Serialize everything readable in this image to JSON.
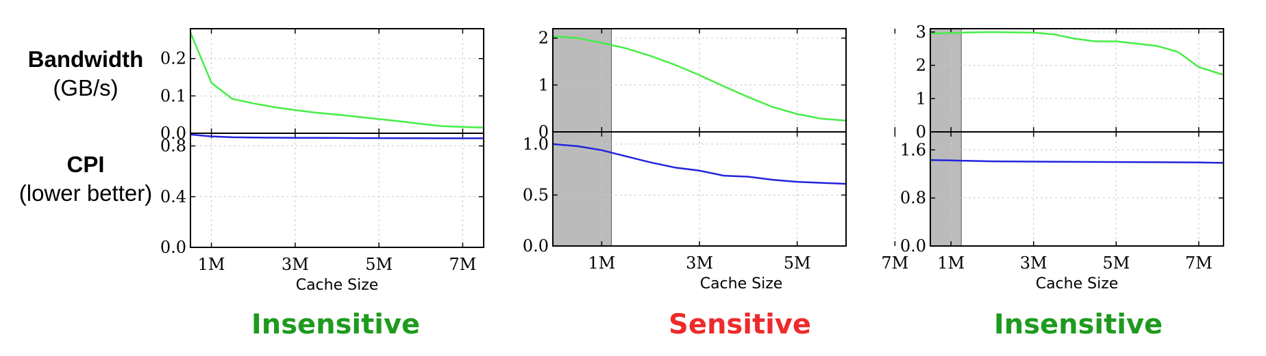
{
  "row_labels": {
    "top": {
      "title": "Bandwidth",
      "sub": "(GB/s)"
    },
    "bottom": {
      "title": "CPI",
      "sub": "(lower better)"
    }
  },
  "colors": {
    "bandwidth": "#44ee44",
    "cpi": "#2222dd",
    "shade": "#bbbbbb",
    "insensitive": "#1e9a1e",
    "sensitive": "#ee2a2a"
  },
  "chart_data": [
    {
      "type": "line",
      "xlabel": "Cache Size",
      "verdict": "Insensitive",
      "verdict_color": "#1e9a1e",
      "x_ticks": [
        {
          "label": "1M",
          "value": 1
        },
        {
          "label": "3M",
          "value": 3
        },
        {
          "label": "5M",
          "value": 5
        },
        {
          "label": "7M",
          "value": 7
        }
      ],
      "xlim": [
        0.5,
        7.5
      ],
      "shaded_x": null,
      "grid": true,
      "top": {
        "name": "Bandwidth",
        "ylim": [
          0,
          0.28
        ],
        "y_ticks": [
          {
            "label": "0.0",
            "value": 0
          },
          {
            "label": "0.1",
            "value": 0.1
          },
          {
            "label": "0.2",
            "value": 0.2
          }
        ],
        "x": [
          0.5,
          1.0,
          1.5,
          2.0,
          2.5,
          3.0,
          3.5,
          4.0,
          4.5,
          5.0,
          5.5,
          6.0,
          6.5,
          7.0,
          7.5
        ],
        "y": [
          0.27,
          0.135,
          0.092,
          0.08,
          0.07,
          0.062,
          0.055,
          0.05,
          0.044,
          0.038,
          0.032,
          0.025,
          0.019,
          0.017,
          0.015
        ]
      },
      "bottom": {
        "name": "CPI",
        "ylim": [
          0,
          0.9
        ],
        "y_ticks": [
          {
            "label": "0.0",
            "value": 0
          },
          {
            "label": "0.4",
            "value": 0.4
          },
          {
            "label": "0.8",
            "value": 0.8
          }
        ],
        "x": [
          0.5,
          1.0,
          1.5,
          2.0,
          2.5,
          3.0,
          3.5,
          4.0,
          4.5,
          5.0,
          5.5,
          6.0,
          6.5,
          7.0,
          7.5
        ],
        "y": [
          0.89,
          0.875,
          0.868,
          0.866,
          0.865,
          0.864,
          0.864,
          0.863,
          0.862,
          0.862,
          0.861,
          0.861,
          0.86,
          0.86,
          0.86
        ]
      }
    },
    {
      "type": "line",
      "xlabel": "Cache Size",
      "verdict": "Sensitive",
      "verdict_color": "#ee2a2a",
      "x_ticks": [
        {
          "label": "1M",
          "value": 1
        },
        {
          "label": "3M",
          "value": 3
        },
        {
          "label": "5M",
          "value": 5
        },
        {
          "label": "7M",
          "value": 7
        }
      ],
      "xlim": [
        0,
        6
      ],
      "shaded_x": [
        0,
        1.2
      ],
      "grid": true,
      "top": {
        "name": "Bandwidth",
        "ylim": [
          0,
          2.2
        ],
        "y_ticks": [
          {
            "label": "0",
            "value": 0
          },
          {
            "label": "1",
            "value": 1
          },
          {
            "label": "2",
            "value": 2
          }
        ],
        "x": [
          0.0,
          0.5,
          1.0,
          1.5,
          2.0,
          2.5,
          3.0,
          3.5,
          4.0,
          4.5,
          5.0,
          5.5,
          6.0
        ],
        "y": [
          2.04,
          2.0,
          1.9,
          1.78,
          1.62,
          1.43,
          1.21,
          0.97,
          0.74,
          0.53,
          0.38,
          0.28,
          0.24
        ]
      },
      "bottom": {
        "name": "CPI",
        "ylim": [
          0,
          1.12
        ],
        "y_ticks": [
          {
            "label": "0.0",
            "value": 0
          },
          {
            "label": "0.5",
            "value": 0.5
          },
          {
            "label": "1.0",
            "value": 1.0
          }
        ],
        "x": [
          0.0,
          0.5,
          1.0,
          1.5,
          2.0,
          2.5,
          3.0,
          3.5,
          4.0,
          4.5,
          5.0,
          5.5,
          6.0
        ],
        "y": [
          1.0,
          0.98,
          0.94,
          0.88,
          0.82,
          0.77,
          0.74,
          0.69,
          0.68,
          0.65,
          0.63,
          0.62,
          0.61
        ]
      }
    },
    {
      "type": "line",
      "xlabel": "Cache Size",
      "verdict": "Insensitive",
      "verdict_color": "#1e9a1e",
      "x_ticks": [
        {
          "label": "1M",
          "value": 1
        },
        {
          "label": "3M",
          "value": 3
        },
        {
          "label": "5M",
          "value": 5
        },
        {
          "label": "7M",
          "value": 7
        }
      ],
      "xlim": [
        0.5,
        7.6
      ],
      "shaded_x": [
        0.5,
        1.25
      ],
      "grid": true,
      "top": {
        "name": "Bandwidth",
        "ylim": [
          0,
          3.1
        ],
        "y_ticks": [
          {
            "label": "0",
            "value": 0
          },
          {
            "label": "1",
            "value": 1
          },
          {
            "label": "2",
            "value": 2
          },
          {
            "label": "3",
            "value": 3
          }
        ],
        "x": [
          0.5,
          1.0,
          1.5,
          2.0,
          2.5,
          3.0,
          3.5,
          4.0,
          4.5,
          5.0,
          5.5,
          6.0,
          6.5,
          7.0,
          7.5,
          7.6
        ],
        "y": [
          2.95,
          2.97,
          2.99,
          3.0,
          2.99,
          2.98,
          2.93,
          2.8,
          2.72,
          2.72,
          2.65,
          2.58,
          2.4,
          1.95,
          1.75,
          1.72
        ]
      },
      "bottom": {
        "name": "CPI",
        "ylim": [
          0,
          1.9
        ],
        "y_ticks": [
          {
            "label": "0.0",
            "value": 0
          },
          {
            "label": "0.8",
            "value": 0.8
          },
          {
            "label": "1.6",
            "value": 1.6
          }
        ],
        "x": [
          0.5,
          1.0,
          2.0,
          3.0,
          4.0,
          5.0,
          6.0,
          7.0,
          7.6
        ],
        "y": [
          1.43,
          1.425,
          1.41,
          1.405,
          1.4,
          1.398,
          1.395,
          1.39,
          1.385
        ]
      }
    }
  ]
}
